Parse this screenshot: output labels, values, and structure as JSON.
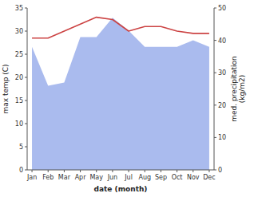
{
  "chart_data": {
    "type": "line",
    "categories": [
      "Jan",
      "Feb",
      "Mar",
      "Apr",
      "May",
      "Jun",
      "Jul",
      "Aug",
      "Sep",
      "Oct",
      "Nov",
      "Dec"
    ],
    "xlabel": "date (month)",
    "ylabel": "max temp (C)",
    "y2label": "med. precipitation\n(kg/m2)",
    "series": [
      {
        "type": "area",
        "axis": "y2",
        "color": "#aabbee",
        "values": [
          38,
          26,
          27,
          41,
          41,
          47,
          43,
          38,
          38,
          38,
          40,
          38
        ]
      },
      {
        "type": "line",
        "color": "#cc4444",
        "values": [
          28.5,
          28.5,
          30.0,
          31.5,
          33.0,
          32.5,
          30.0,
          31.0,
          31.0,
          30.0,
          29.5,
          29.5
        ]
      }
    ],
    "ylim": [
      0,
      35
    ],
    "yticks": [
      0,
      5,
      10,
      15,
      20,
      25,
      30,
      35
    ],
    "y2lim": [
      0,
      50
    ],
    "y2ticks": [
      0,
      10,
      20,
      30,
      40,
      50
    ],
    "grid": false
  }
}
